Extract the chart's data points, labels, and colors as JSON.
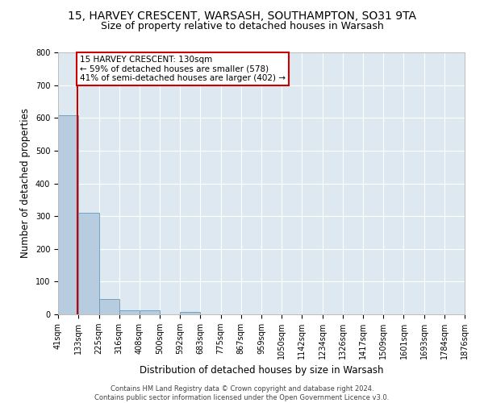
{
  "title1": "15, HARVEY CRESCENT, WARSASH, SOUTHAMPTON, SO31 9TA",
  "title2": "Size of property relative to detached houses in Warsash",
  "xlabel": "Distribution of detached houses by size in Warsash",
  "ylabel": "Number of detached properties",
  "footer1": "Contains HM Land Registry data © Crown copyright and database right 2024.",
  "footer2": "Contains public sector information licensed under the Open Government Licence v3.0.",
  "bin_edges": [
    41,
    133,
    225,
    316,
    408,
    500,
    592,
    683,
    775,
    867,
    959,
    1050,
    1142,
    1234,
    1326,
    1417,
    1509,
    1601,
    1693,
    1784,
    1876
  ],
  "bar_heights": [
    608,
    310,
    48,
    12,
    13,
    0,
    8,
    0,
    0,
    0,
    0,
    0,
    0,
    0,
    0,
    0,
    0,
    0,
    0,
    0
  ],
  "bar_color": "#b8ccdf",
  "bar_edge_color": "#6699bb",
  "property_size": 130,
  "annotation_line1": "15 HARVEY CRESCENT: 130sqm",
  "annotation_line2": "← 59% of detached houses are smaller (578)",
  "annotation_line3": "41% of semi-detached houses are larger (402) →",
  "annotation_box_color": "white",
  "annotation_box_edge_color": "#cc0000",
  "vline_color": "#cc0000",
  "ylim": [
    0,
    800
  ],
  "yticks": [
    0,
    100,
    200,
    300,
    400,
    500,
    600,
    700,
    800
  ],
  "bg_color": "#dde8f0",
  "grid_color": "white",
  "title1_fontsize": 10,
  "title2_fontsize": 9,
  "xlabel_fontsize": 8.5,
  "ylabel_fontsize": 8.5,
  "tick_fontsize": 7,
  "annot_fontsize": 7.5
}
